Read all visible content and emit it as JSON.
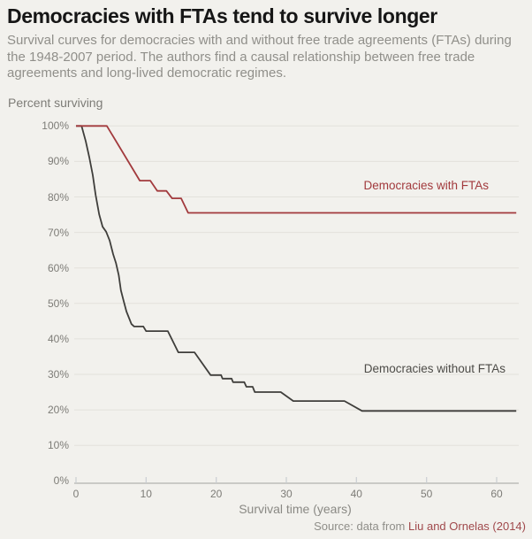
{
  "header": {
    "title": "Democracies with FTAs tend to survive longer",
    "subtitle": "Survival curves for democracies with and without free trade agreements (FTAs) during the 1948-2007 period. The authors find a causal relationship between free trade agreements and long-lived democratic regimes."
  },
  "footer": {
    "source_prefix": "Source: data from ",
    "source_link": "Liu and Ornelas (2014)"
  },
  "colors": {
    "background": "#f2f1ed",
    "accent_red": "#a23a3d",
    "line_dark": "#3f3e3b",
    "gridline": "#e3e1dc",
    "axis_line": "#b3b2ae",
    "muted_text": "#7d7c77",
    "source_link": "#a0494c"
  },
  "chart_data": {
    "type": "line",
    "subtype": "survival-step-curves",
    "title": "Democracies with FTAs tend to survive longer",
    "xlabel": "Survival time (years)",
    "ylabel": "Percent surviving",
    "xlim": [
      0,
      63
    ],
    "ylim": [
      0,
      100
    ],
    "grid": "horizontal",
    "legend_position": "inline-labels",
    "x_ticks": [
      0,
      10,
      20,
      30,
      40,
      50,
      60
    ],
    "y_ticks": [
      {
        "value": 0,
        "label": "0%"
      },
      {
        "value": 10,
        "label": "10%"
      },
      {
        "value": 20,
        "label": "20%"
      },
      {
        "value": 30,
        "label": "30%"
      },
      {
        "value": 40,
        "label": "40%"
      },
      {
        "value": 50,
        "label": "50%"
      },
      {
        "value": 60,
        "label": "60%"
      },
      {
        "value": 70,
        "label": "70%"
      },
      {
        "value": 80,
        "label": "80%"
      },
      {
        "value": 90,
        "label": "90%"
      },
      {
        "value": 100,
        "label": "100%"
      }
    ],
    "series": [
      {
        "id": "with-ftas",
        "name": "Democracies with FTAs",
        "color": "#a23a3d",
        "points": [
          [
            0,
            100
          ],
          [
            4.4,
            100
          ],
          [
            9.1,
            84.6
          ],
          [
            10.6,
            84.6
          ],
          [
            11.6,
            81.7
          ],
          [
            12.9,
            81.7
          ],
          [
            13.7,
            79.6
          ],
          [
            15,
            79.6
          ],
          [
            16,
            75.5
          ],
          [
            62.8,
            75.5
          ]
        ]
      },
      {
        "id": "without-ftas",
        "name": "Democracies without FTAs",
        "color": "#3f3e3b",
        "points": [
          [
            0,
            100
          ],
          [
            0.8,
            100
          ],
          [
            1.4,
            95.6
          ],
          [
            1.9,
            91.1
          ],
          [
            2.4,
            86.1
          ],
          [
            2.8,
            80.6
          ],
          [
            3.3,
            75.1
          ],
          [
            3.8,
            71.6
          ],
          [
            4.3,
            70.2
          ],
          [
            4.8,
            67.7
          ],
          [
            5.3,
            63.9
          ],
          [
            5.7,
            61.4
          ],
          [
            6.1,
            57.9
          ],
          [
            6.4,
            53.7
          ],
          [
            6.8,
            50.7
          ],
          [
            7.2,
            47.7
          ],
          [
            7.6,
            45.7
          ],
          [
            7.9,
            44.2
          ],
          [
            8.3,
            43.5
          ],
          [
            9.6,
            43.5
          ],
          [
            10,
            42.2
          ],
          [
            13.1,
            42.2
          ],
          [
            14.6,
            36.2
          ],
          [
            16.9,
            36.2
          ],
          [
            19.2,
            29.8
          ],
          [
            20.7,
            29.8
          ],
          [
            20.9,
            28.8
          ],
          [
            22.2,
            28.8
          ],
          [
            22.4,
            27.8
          ],
          [
            24,
            27.8
          ],
          [
            24.3,
            26.5
          ],
          [
            25.2,
            26.5
          ],
          [
            25.5,
            25
          ],
          [
            29.2,
            25
          ],
          [
            31,
            22.5
          ],
          [
            38.3,
            22.5
          ],
          [
            40.8,
            19.7
          ],
          [
            62.8,
            19.7
          ]
        ]
      }
    ],
    "source": "Source: data from Liu and Ornelas (2014)"
  }
}
